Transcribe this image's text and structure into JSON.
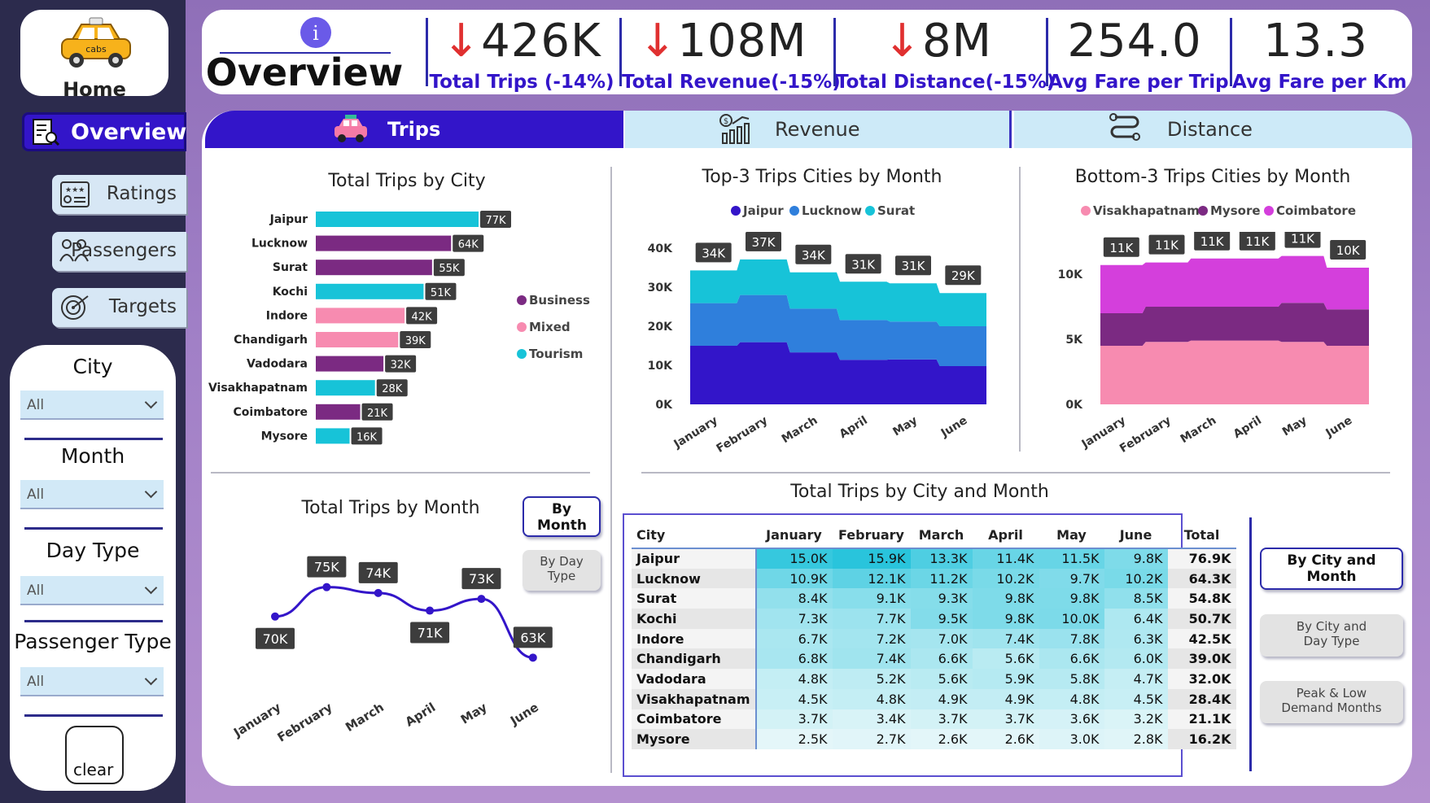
{
  "nav": {
    "home_label": "Home",
    "logo_text": "cabs",
    "overview_label": "Overview",
    "items": [
      {
        "label": "Ratings"
      },
      {
        "label": "Passengers"
      },
      {
        "label": "Targets"
      }
    ]
  },
  "filters": {
    "city": {
      "label": "City",
      "value": "All"
    },
    "month": {
      "label": "Month",
      "value": "All"
    },
    "day_type": {
      "label": "Day Type",
      "value": "All"
    },
    "passenger_type": {
      "label": "Passenger Type",
      "value": "All"
    },
    "clear_label": "clear"
  },
  "header": {
    "title": "Overview",
    "info_icon": "i",
    "kpis": [
      {
        "value": "426K",
        "label": "Total Trips (-14%)",
        "down": true
      },
      {
        "value": "108M",
        "label": "Total Revenue(-15%)",
        "down": true
      },
      {
        "value": "8M",
        "label": "Total Distance(-15%)",
        "down": true
      },
      {
        "value": "254.0",
        "label": "Avg Fare per Trip",
        "down": false
      },
      {
        "value": "13.3",
        "label": "Avg Fare per Km",
        "down": false
      }
    ]
  },
  "tabs": [
    {
      "label": "Trips",
      "active": true
    },
    {
      "label": "Revenue",
      "active": false
    },
    {
      "label": "Distance",
      "active": false
    }
  ],
  "colors": {
    "business": "#7b2a82",
    "mixed": "#f78bb0",
    "tourism": "#17c3d8",
    "accent": "#3315c9"
  },
  "chart_data": [
    {
      "type": "bar",
      "title": "Total Trips by City",
      "categories": [
        "Jaipur",
        "Lucknow",
        "Surat",
        "Kochi",
        "Indore",
        "Chandigarh",
        "Vadodara",
        "Visakhapatnam",
        "Coimbatore",
        "Mysore"
      ],
      "values": [
        77,
        64,
        55,
        51,
        42,
        39,
        32,
        28,
        21,
        16
      ],
      "labels": [
        "77K",
        "64K",
        "55K",
        "51K",
        "42K",
        "39K",
        "32K",
        "28K",
        "21K",
        "16K"
      ],
      "city_type": [
        "Tourism",
        "Business",
        "Business",
        "Tourism",
        "Mixed",
        "Mixed",
        "Business",
        "Tourism",
        "Business",
        "Tourism"
      ],
      "legend": [
        "Business",
        "Mixed",
        "Tourism"
      ]
    },
    {
      "type": "area",
      "title": "Top-3 Trips Cities by Month",
      "categories": [
        "January",
        "February",
        "March",
        "April",
        "May",
        "June"
      ],
      "series": [
        {
          "name": "Jaipur",
          "values": [
            15.0,
            15.9,
            13.3,
            11.4,
            11.5,
            9.8
          ],
          "color": "#3315c9"
        },
        {
          "name": "Lucknow",
          "values": [
            10.9,
            12.1,
            11.2,
            10.2,
            9.7,
            10.2
          ],
          "color": "#2f7fdc"
        },
        {
          "name": "Surat",
          "values": [
            8.4,
            9.1,
            9.3,
            9.8,
            9.8,
            8.5
          ],
          "color": "#17c3d8"
        }
      ],
      "totals": [
        "34K",
        "37K",
        "34K",
        "31K",
        "31K",
        "29K"
      ],
      "yticks": [
        "0K",
        "10K",
        "20K",
        "30K",
        "40K"
      ],
      "ylim": [
        0,
        40
      ]
    },
    {
      "type": "area",
      "title": "Bottom-3 Trips Cities by Month",
      "categories": [
        "January",
        "February",
        "March",
        "April",
        "May",
        "June"
      ],
      "series": [
        {
          "name": "Visakhapatnam",
          "values": [
            4.5,
            4.8,
            4.9,
            4.9,
            4.8,
            4.5
          ],
          "color": "#f78bb0"
        },
        {
          "name": "Mysore",
          "values": [
            2.5,
            2.7,
            2.6,
            2.6,
            3.0,
            2.8
          ],
          "color": "#7b2a82"
        },
        {
          "name": "Coimbatore",
          "values": [
            3.7,
            3.4,
            3.7,
            3.7,
            3.6,
            3.2
          ],
          "color": "#d43fdc"
        }
      ],
      "totals": [
        "11K",
        "11K",
        "11K",
        "11K",
        "11K",
        "10K"
      ],
      "yticks": [
        "0K",
        "5K",
        "10K"
      ],
      "ylim": [
        0,
        12
      ]
    },
    {
      "type": "line",
      "title": "Total Trips by Month",
      "categories": [
        "January",
        "February",
        "March",
        "April",
        "May",
        "June"
      ],
      "values": [
        70,
        75,
        74,
        71,
        73,
        63
      ],
      "labels": [
        "70K",
        "75K",
        "74K",
        "71K",
        "73K",
        "63K"
      ]
    },
    {
      "type": "table",
      "title": "Total Trips by City and Month",
      "columns": [
        "City",
        "January",
        "February",
        "March",
        "April",
        "May",
        "June",
        "Total"
      ],
      "rows": [
        [
          "Jaipur",
          "15.0K",
          "15.9K",
          "13.3K",
          "11.4K",
          "11.5K",
          "9.8K",
          "76.9K"
        ],
        [
          "Lucknow",
          "10.9K",
          "12.1K",
          "11.2K",
          "10.2K",
          "9.7K",
          "10.2K",
          "64.3K"
        ],
        [
          "Surat",
          "8.4K",
          "9.1K",
          "9.3K",
          "9.8K",
          "9.8K",
          "8.5K",
          "54.8K"
        ],
        [
          "Kochi",
          "7.3K",
          "7.7K",
          "9.5K",
          "9.8K",
          "10.0K",
          "6.4K",
          "50.7K"
        ],
        [
          "Indore",
          "6.7K",
          "7.2K",
          "7.0K",
          "7.4K",
          "7.8K",
          "6.3K",
          "42.5K"
        ],
        [
          "Chandigarh",
          "6.8K",
          "7.4K",
          "6.6K",
          "5.6K",
          "6.6K",
          "6.0K",
          "39.0K"
        ],
        [
          "Vadodara",
          "4.8K",
          "5.2K",
          "5.6K",
          "5.9K",
          "5.8K",
          "4.7K",
          "32.0K"
        ],
        [
          "Visakhapatnam",
          "4.5K",
          "4.8K",
          "4.9K",
          "4.9K",
          "4.8K",
          "4.5K",
          "28.4K"
        ],
        [
          "Coimbatore",
          "3.7K",
          "3.4K",
          "3.7K",
          "3.7K",
          "3.6K",
          "3.2K",
          "21.1K"
        ],
        [
          "Mysore",
          "2.5K",
          "2.7K",
          "2.6K",
          "2.6K",
          "3.0K",
          "2.8K",
          "16.2K"
        ]
      ]
    }
  ],
  "buttons": {
    "by_month": "By Month",
    "by_day_type": "By Day Type",
    "by_city_month": "By City and Month",
    "by_city_day": "By City and Day Type",
    "peak_low": "Peak & Low Demand Months"
  }
}
